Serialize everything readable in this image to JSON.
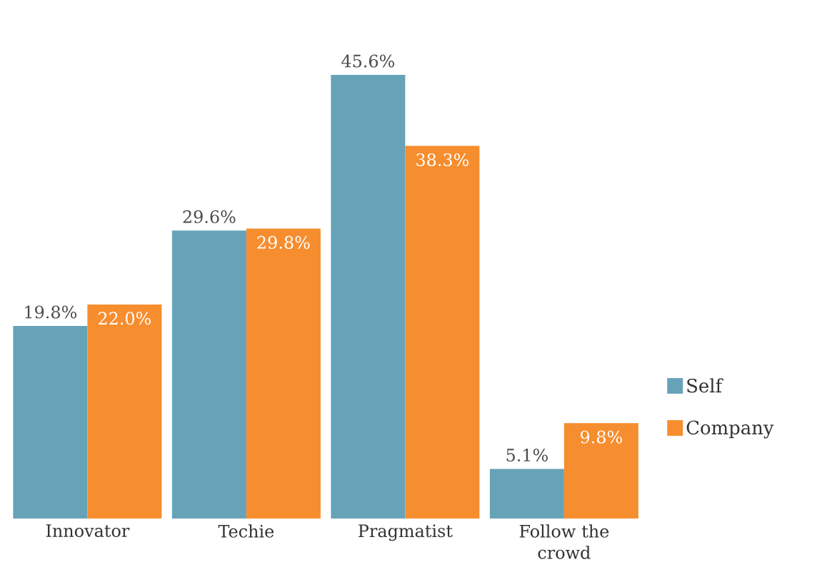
{
  "chart_data": {
    "type": "bar",
    "categories": [
      "Innovator",
      "Techie",
      "Pragmatist",
      "Follow the crowd"
    ],
    "series": [
      {
        "name": "Self",
        "color": "#67a3b8",
        "values": [
          19.8,
          29.6,
          45.6,
          5.1
        ],
        "value_labels": [
          "19.8%",
          "29.6%",
          "45.6%",
          "5.1%"
        ]
      },
      {
        "name": "Company",
        "color": "#f68d2e",
        "values": [
          22.0,
          29.8,
          38.3,
          9.8
        ],
        "value_labels": [
          "22.0%",
          "29.8%",
          "38.3%",
          "9.8%"
        ]
      }
    ],
    "legend": "right"
  }
}
